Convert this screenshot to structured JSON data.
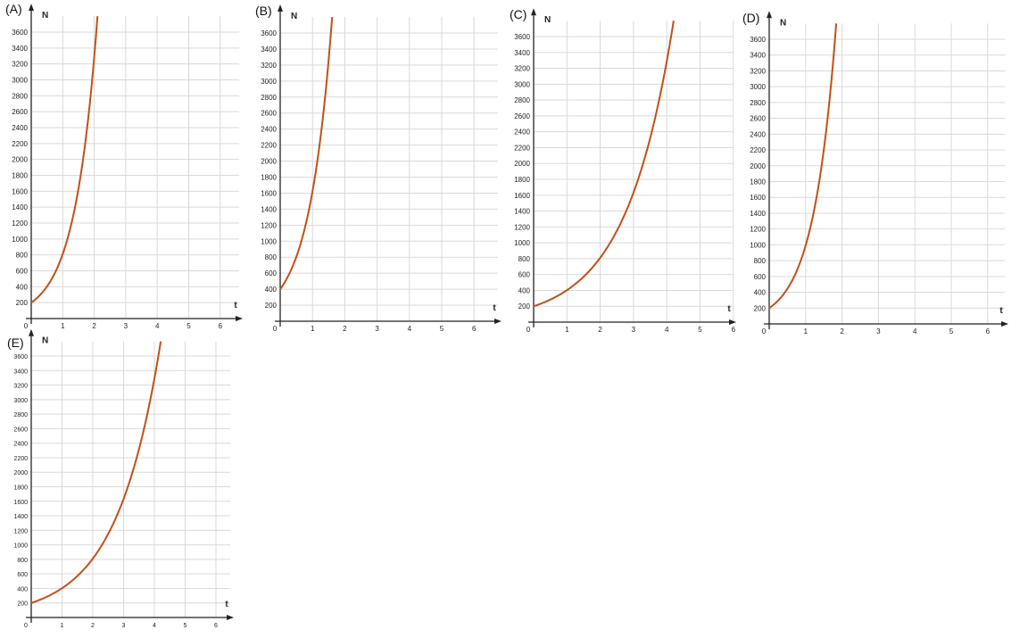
{
  "colors": {
    "curve": "#c0501a",
    "grid": "#d9d9d9",
    "axis": "#222222"
  },
  "chart_data": [
    {
      "label": "(A)",
      "type": "line",
      "function": "exponential",
      "title": "",
      "xlabel": "t",
      "ylabel": "N",
      "xticks": [
        0,
        1,
        2,
        3,
        4,
        5,
        6
      ],
      "yticks": [
        200,
        400,
        600,
        800,
        1000,
        1200,
        1400,
        1600,
        1800,
        2000,
        2200,
        2400,
        2600,
        2800,
        3000,
        3200,
        3400,
        3600
      ],
      "xlim": [
        0,
        6.7
      ],
      "ylim": [
        0,
        3800
      ],
      "grid": true,
      "N0": 200,
      "rate": 1.4
    },
    {
      "label": "(B)",
      "type": "line",
      "function": "exponential",
      "title": "",
      "xlabel": "t",
      "ylabel": "N",
      "xticks": [
        0,
        1,
        2,
        3,
        4,
        5,
        6
      ],
      "yticks": [
        200,
        400,
        600,
        800,
        1000,
        1200,
        1400,
        1600,
        1800,
        2000,
        2200,
        2400,
        2600,
        2800,
        3000,
        3200,
        3400,
        3600
      ],
      "xlim": [
        0,
        6.7
      ],
      "ylim": [
        0,
        3800
      ],
      "grid": true,
      "N0": 400,
      "rate": 1.4
    },
    {
      "label": "(C)",
      "type": "line",
      "function": "exponential",
      "title": "",
      "xlabel": "t",
      "ylabel": "N",
      "xticks": [
        0,
        1,
        2,
        3,
        4,
        5,
        6
      ],
      "yticks": [
        200,
        400,
        600,
        800,
        1000,
        1200,
        1400,
        1600,
        1800,
        2000,
        2200,
        2400,
        2600,
        2800,
        3000,
        3200,
        3400,
        3600
      ],
      "xlim": [
        0,
        6.7
      ],
      "ylim": [
        0,
        3800
      ],
      "grid": true,
      "N0": 200,
      "rate": 0.7
    },
    {
      "label": "(D)",
      "type": "line",
      "function": "exponential",
      "title": "",
      "xlabel": "t",
      "ylabel": "N",
      "xticks": [
        0,
        1,
        2,
        3,
        4,
        5,
        6
      ],
      "yticks": [
        200,
        400,
        600,
        800,
        1000,
        1200,
        1400,
        1600,
        1800,
        2000,
        2200,
        2400,
        2600,
        2800,
        3000,
        3200,
        3400,
        3600
      ],
      "xlim": [
        0,
        6.7
      ],
      "ylim": [
        0,
        3800
      ],
      "grid": true,
      "N0": 200,
      "rate": 1.6
    },
    {
      "label": "(E)",
      "type": "line",
      "function": "exponential",
      "title": "",
      "xlabel": "t",
      "ylabel": "N",
      "xticks": [
        0,
        1,
        2,
        3,
        4,
        5,
        6
      ],
      "yticks": [
        200,
        400,
        600,
        800,
        1000,
        1200,
        1400,
        1600,
        1800,
        2000,
        2200,
        2400,
        2600,
        2800,
        3000,
        3200,
        3400,
        3600
      ],
      "xlim": [
        0,
        6.7
      ],
      "ylim": [
        0,
        3800
      ],
      "grid": true,
      "N0": 200,
      "rate": 0.7
    }
  ]
}
